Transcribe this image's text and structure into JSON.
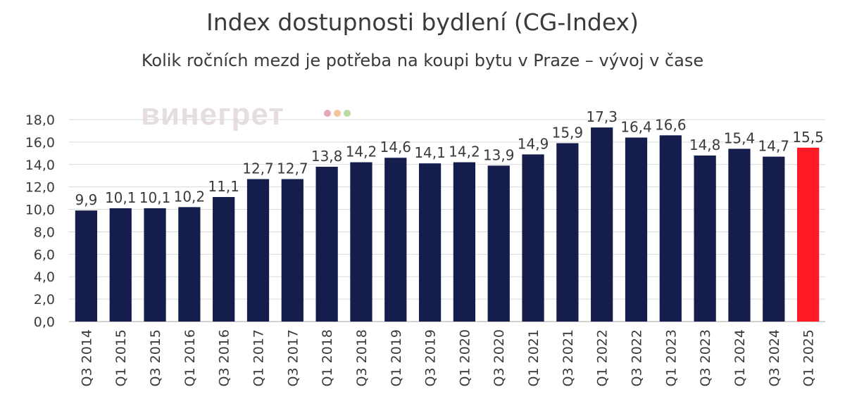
{
  "chart_data": {
    "type": "bar",
    "title": "Index dostupnosti bydlení (CG-Index)",
    "subtitle": "Kolik ročních mezd je potřeba na koupi bytu v Praze – vývoj v čase",
    "xlabel": "",
    "ylabel": "",
    "ylim": [
      0,
      18
    ],
    "yticks": [
      "0,0",
      "2,0",
      "4,0",
      "6,0",
      "8,0",
      "10,0",
      "12,0",
      "14,0",
      "16,0",
      "18,0"
    ],
    "grid": true,
    "categories": [
      "Q3 2014",
      "Q1 2015",
      "Q3 2015",
      "Q1 2016",
      "Q3 2016",
      "Q1 2017",
      "Q3 2017",
      "Q1 2018",
      "Q3 2018",
      "Q1 2019",
      "Q3 2019",
      "Q1 2020",
      "Q3 2020",
      "Q1 2021",
      "Q3 2021",
      "Q1 2022",
      "Q3 2022",
      "Q1 2023",
      "Q3 2023",
      "Q1 2024",
      "Q3 2024",
      "Q1 2025"
    ],
    "values": [
      9.9,
      10.1,
      10.1,
      10.2,
      11.1,
      12.7,
      12.7,
      13.8,
      14.2,
      14.6,
      14.1,
      14.2,
      13.9,
      14.9,
      15.9,
      17.3,
      16.4,
      16.6,
      14.8,
      15.4,
      14.7,
      15.5
    ],
    "labels": [
      "9,9",
      "10,1",
      "10,1",
      "10,2",
      "11,1",
      "12,7",
      "12,7",
      "13,8",
      "14,2",
      "14,6",
      "14,1",
      "14,2",
      "13,9",
      "14,9",
      "15,9",
      "17,3",
      "16,4",
      "16,6",
      "14,8",
      "15,4",
      "14,7",
      "15,5"
    ],
    "colors": {
      "bar": "#141d4b",
      "highlight": "#ff1a25",
      "grid": "#d9d9d9",
      "axis": "#a6a6a6"
    },
    "highlight_index": 21
  },
  "watermark": {
    "text": "винегрет",
    "dot_colors": [
      "#e9a6b4",
      "#f3c79c",
      "#b9dca2"
    ]
  }
}
